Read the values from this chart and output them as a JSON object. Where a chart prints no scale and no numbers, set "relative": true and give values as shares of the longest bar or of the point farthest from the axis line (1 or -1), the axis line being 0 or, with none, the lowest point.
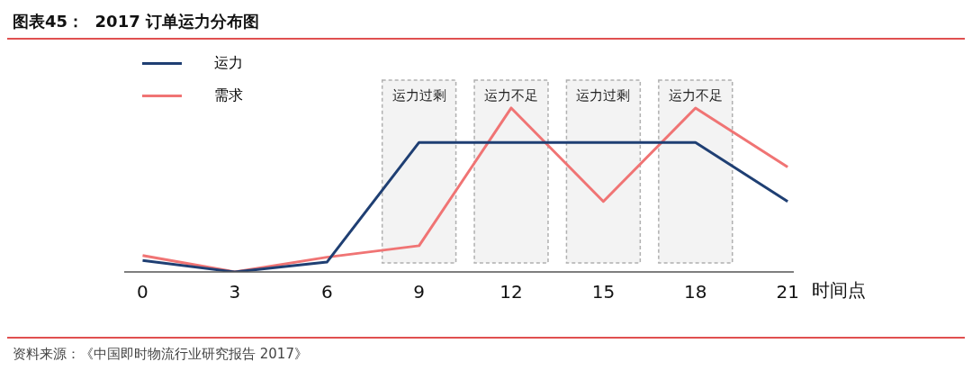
{
  "chart_data": {
    "type": "line",
    "title": "图表45：  2017 订单运力分布图",
    "xlabel": "时间点",
    "relative": true,
    "legend": "top left",
    "grid": false,
    "marker": "none",
    "line_style": "solid",
    "x": [
      0,
      3,
      6,
      9,
      12,
      15,
      18,
      21
    ],
    "xlim": [
      -0.6,
      21.2
    ],
    "xticks": [
      0,
      3,
      6,
      9,
      12,
      15,
      18,
      21
    ],
    "series": [
      {
        "name": "运力",
        "color": "#1f3f73",
        "values": [
          0.07,
          0,
          0.06,
          0.79,
          0.79,
          0.79,
          0.79,
          0.43
        ]
      },
      {
        "name": "需求",
        "color": "#f07474",
        "values": [
          0.1,
          0,
          0.09,
          0.16,
          1,
          0.43,
          1,
          0.64
        ]
      }
    ],
    "bands": [
      {
        "axis": "x",
        "from": 7.8,
        "to": 10.2,
        "label": "运力过剩",
        "color": "#b0b0b0"
      },
      {
        "axis": "x",
        "from": 10.8,
        "to": 13.2,
        "label": "运力不足",
        "color": "#b0b0b0"
      },
      {
        "axis": "x",
        "from": 13.8,
        "to": 16.2,
        "label": "运力过剩",
        "color": "#b0b0b0"
      },
      {
        "axis": "x",
        "from": 16.8,
        "to": 19.2,
        "label": "运力不足",
        "color": "#b0b0b0"
      }
    ],
    "annotations": [
      "资料来源：《中国即时物流行业研究报告 2017》"
    ]
  }
}
